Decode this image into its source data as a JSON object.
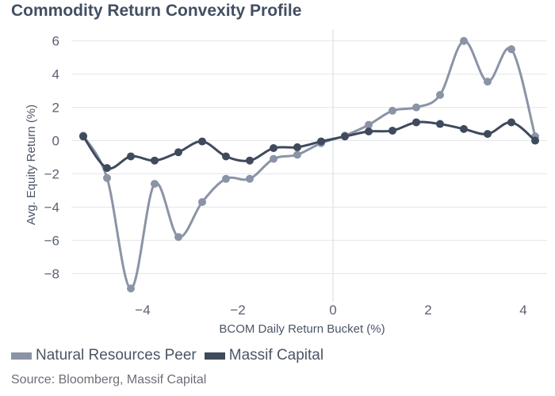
{
  "chart_data": {
    "type": "line",
    "title": "Commodity Return Convexity Profile",
    "xlabel": "BCOM Daily Return Bucket (%)",
    "ylabel": "Avg. Equity Return (%)",
    "xlim": [
      -5.5,
      4.5
    ],
    "ylim": [
      -9.7,
      6.7
    ],
    "xticks": [
      -4,
      -2,
      0,
      2,
      4
    ],
    "xtick_labels": [
      "−4",
      "−2",
      "0",
      "2",
      "4"
    ],
    "yticks": [
      6,
      4,
      2,
      0,
      -2,
      -4,
      -6,
      -8
    ],
    "ytick_labels": [
      "6",
      "4",
      "2",
      "0",
      "−2",
      "−4",
      "−6",
      "−8"
    ],
    "grid": "horizontal",
    "legend_position": "bottom-left",
    "x": [
      -5.25,
      -4.75,
      -4.25,
      -3.75,
      -3.25,
      -2.75,
      -2.25,
      -1.75,
      -1.25,
      -0.75,
      -0.25,
      0.25,
      0.75,
      1.25,
      1.75,
      2.25,
      2.75,
      3.25,
      3.75,
      4.25
    ],
    "series": [
      {
        "name": "Natural Resources Peer",
        "color": "#8a94a6",
        "values": [
          0.3,
          -2.25,
          -8.9,
          -2.6,
          -5.8,
          -3.7,
          -2.3,
          -2.3,
          -1.1,
          -0.85,
          -0.15,
          0.3,
          0.95,
          1.8,
          2.0,
          2.75,
          6.0,
          3.55,
          5.5,
          0.25
        ]
      },
      {
        "name": "Massif Capital",
        "color": "#3f4a5c",
        "values": [
          0.25,
          -1.65,
          -0.95,
          -1.2,
          -0.7,
          -0.05,
          -0.95,
          -1.2,
          -0.45,
          -0.4,
          -0.05,
          0.25,
          0.55,
          0.6,
          1.1,
          1.0,
          0.7,
          0.4,
          1.1,
          0.0
        ]
      }
    ]
  },
  "source_text": "Source: Bloomberg, Massif Capital"
}
